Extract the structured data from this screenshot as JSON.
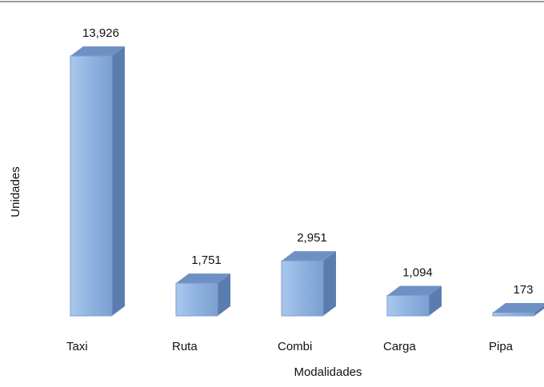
{
  "chart_data": {
    "type": "bar3d",
    "categories": [
      "Taxi",
      "Ruta",
      "Combi",
      "Carga",
      "Pipa"
    ],
    "values": [
      13926,
      1751,
      2951,
      1094,
      173
    ],
    "value_labels": [
      "13,926",
      "1,751",
      "2,951",
      "1,094",
      "173"
    ],
    "color": "#8fb3e0",
    "xlabel": "Modalidades",
    "ylabel": "Unidades"
  }
}
